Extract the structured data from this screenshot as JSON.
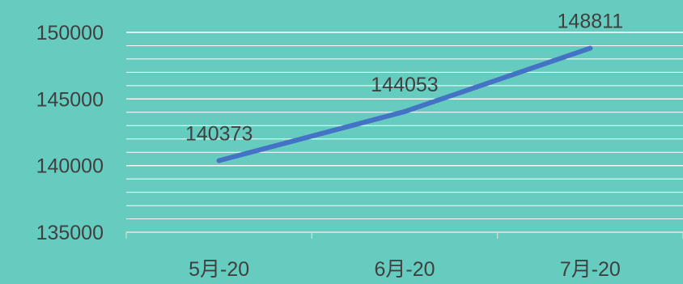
{
  "chart_data": {
    "type": "line",
    "title": "",
    "xlabel": "",
    "ylabel": "",
    "categories": [
      "5月-20",
      "6月-20",
      "7月-20"
    ],
    "series": [
      {
        "values": [
          140373,
          144053,
          148811
        ]
      }
    ],
    "data_labels": [
      "140373",
      "144053",
      "148811"
    ],
    "ylim": [
      135000,
      150000
    ],
    "yticks": [
      "135000",
      "140000",
      "145000",
      "150000"
    ],
    "grid": true,
    "legend": "none",
    "colors": {
      "background": "#67ccc0",
      "line": "#4472c4",
      "grid": "#ffffff",
      "text": "#404040"
    }
  }
}
